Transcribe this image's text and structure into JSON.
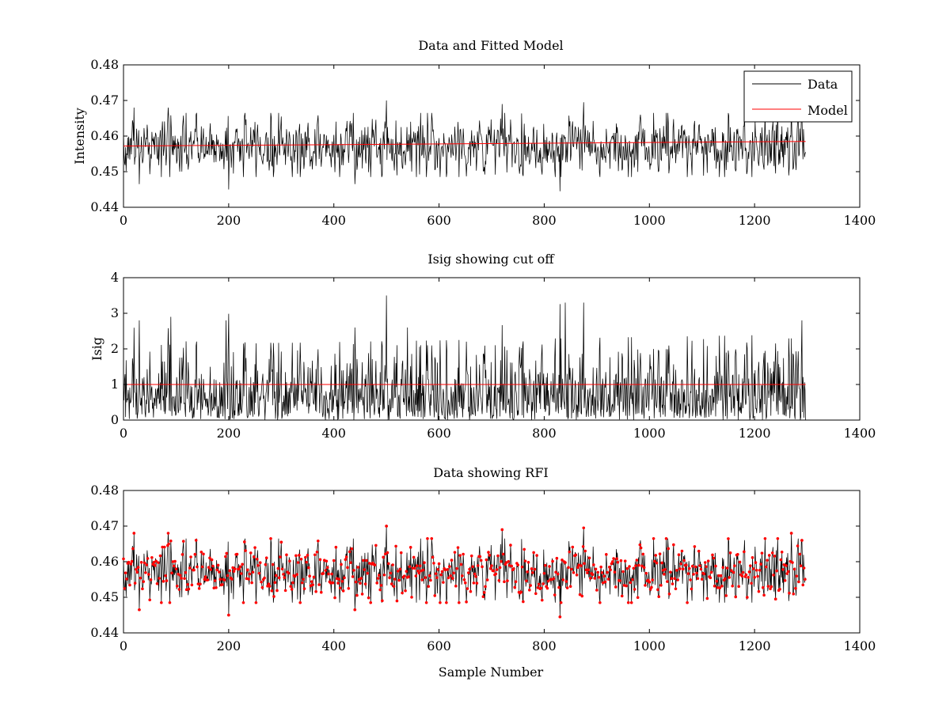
{
  "chart_data": [
    {
      "type": "line",
      "title": "Data and Fitted Model",
      "xlabel": "",
      "ylabel": "Intensity",
      "xlim": [
        0,
        1400
      ],
      "ylim": [
        0.44,
        0.48
      ],
      "x_ticks": [
        0,
        200,
        400,
        600,
        800,
        1000,
        1200,
        1400
      ],
      "y_ticks": [
        0.44,
        0.45,
        0.46,
        0.47,
        0.48
      ],
      "x_tick_labels": [
        "0",
        "200",
        "400",
        "600",
        "800",
        "1000",
        "1200",
        "1400"
      ],
      "y_tick_labels": [
        "0.44",
        "0.45",
        "0.46",
        "0.47",
        "0.48"
      ],
      "grid": false,
      "legend_position": "top-right",
      "series": [
        {
          "name": "Data",
          "color": "#000000",
          "style": "line",
          "x_range": [
            0,
            1297
          ],
          "baseline": 0.4572,
          "spread": 0.0042,
          "peaks": [
            [
              20,
              0.468
            ],
            [
              85,
              0.468
            ],
            [
              300,
              0.4655
            ],
            [
              500,
              0.47
            ],
            [
              720,
              0.469
            ],
            [
              875,
              0.4695
            ],
            [
              1270,
              0.468
            ],
            [
              1290,
              0.466
            ]
          ],
          "troughs": [
            [
              30,
              0.4465
            ],
            [
              200,
              0.445
            ],
            [
              440,
              0.4465
            ],
            [
              830,
              0.4445
            ],
            [
              1240,
              0.4495
            ]
          ]
        },
        {
          "name": "Model",
          "color": "#ff0000",
          "style": "line",
          "x": [
            0,
            1297
          ],
          "y": [
            0.4572,
            0.4585
          ]
        }
      ]
    },
    {
      "type": "line",
      "title": "Isig showing cut off",
      "xlabel": "",
      "ylabel": "Isig",
      "xlim": [
        0,
        1400
      ],
      "ylim": [
        0,
        4
      ],
      "x_ticks": [
        0,
        200,
        400,
        600,
        800,
        1000,
        1200,
        1400
      ],
      "y_ticks": [
        0,
        1,
        2,
        3,
        4
      ],
      "x_tick_labels": [
        "0",
        "200",
        "400",
        "600",
        "800",
        "1000",
        "1200",
        "1400"
      ],
      "y_tick_labels": [
        "0",
        "1",
        "2",
        "3",
        "4"
      ],
      "grid": false,
      "series": [
        {
          "color": "#000000",
          "style": "line",
          "x_range": [
            0,
            1297
          ],
          "peaks": [
            [
              30,
              2.8
            ],
            [
              90,
              2.9
            ],
            [
              195,
              2.8
            ],
            [
              440,
              2.6
            ],
            [
              500,
              3.5
            ],
            [
              540,
              2.6
            ],
            [
              840,
              3.3
            ],
            [
              875,
              3.3
            ],
            [
              1290,
              2.8
            ]
          ]
        },
        {
          "color": "#ff0000",
          "style": "line",
          "x": [
            0,
            1297
          ],
          "y": [
            1,
            1
          ]
        }
      ]
    },
    {
      "type": "line",
      "title": "Data showing RFI",
      "xlabel": "Sample Number",
      "ylabel": "",
      "xlim": [
        0,
        1400
      ],
      "ylim": [
        0.44,
        0.48
      ],
      "x_ticks": [
        0,
        200,
        400,
        600,
        800,
        1000,
        1200,
        1400
      ],
      "y_ticks": [
        0.44,
        0.45,
        0.46,
        0.47,
        0.48
      ],
      "x_tick_labels": [
        "0",
        "200",
        "400",
        "600",
        "800",
        "1000",
        "1200",
        "1400"
      ],
      "y_tick_labels": [
        "0.44",
        "0.45",
        "0.46",
        "0.47",
        "0.48"
      ],
      "grid": false,
      "series": [
        {
          "color": "#000000",
          "style": "line",
          "same_as": "Data"
        },
        {
          "color": "#ff0000",
          "style": "markers",
          "same_as": "Data"
        }
      ]
    }
  ]
}
